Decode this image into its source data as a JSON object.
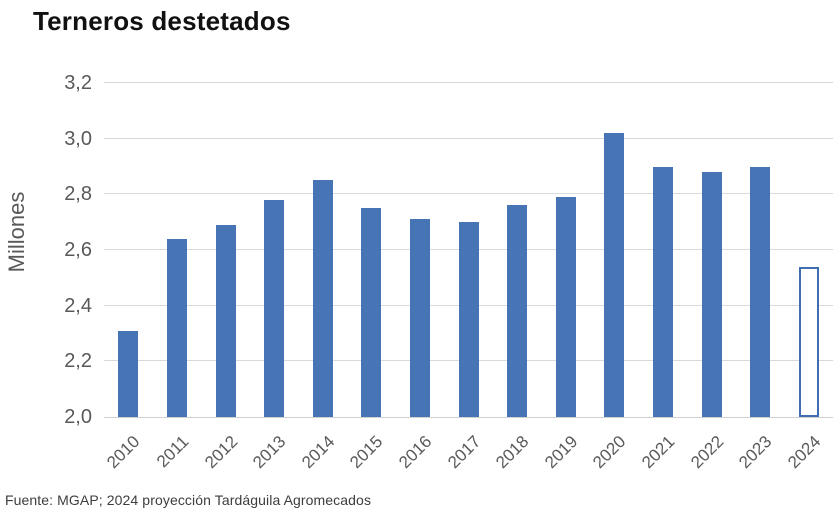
{
  "title": "Terneros destetados",
  "y_axis_title": "Millones",
  "source_note": "Fuente: MGAP; 2024 proyección Tardáguila Agromecados",
  "chart_data": {
    "type": "bar",
    "title": "Terneros destetados",
    "xlabel": "",
    "ylabel": "Millones",
    "categories": [
      "2010",
      "2011",
      "2012",
      "2013",
      "2014",
      "2015",
      "2016",
      "2017",
      "2018",
      "2019",
      "2020",
      "2021",
      "2022",
      "2023",
      "2024"
    ],
    "values": [
      2.31,
      2.64,
      2.69,
      2.78,
      2.85,
      2.75,
      2.71,
      2.7,
      2.76,
      2.79,
      3.02,
      2.9,
      2.88,
      2.9,
      2.54
    ],
    "projected_category": "2024",
    "projected_style": "hollow-outlined-bar",
    "ylim": [
      2.0,
      3.2
    ],
    "yticks": [
      {
        "value": 3.2,
        "label": "3,2"
      },
      {
        "value": 3.0,
        "label": "3,0"
      },
      {
        "value": 2.8,
        "label": "2,8"
      },
      {
        "value": 2.6,
        "label": "2,6"
      },
      {
        "value": 2.4,
        "label": "2,4"
      },
      {
        "value": 2.2,
        "label": "2,2"
      },
      {
        "value": 2.0,
        "label": "2,0"
      }
    ],
    "grid": "horizontal",
    "legend": "none",
    "x_tick_rotation_deg": 45,
    "decimal_separator": ",",
    "colors": {
      "bar_fill": "#4674b4",
      "bar_outline": "#3f6fb1",
      "gridline": "#d9d9d9",
      "axis_line": "#d0d0d0",
      "tick_label": "#595959",
      "title": "#111111",
      "source_note": "#3d3d3d",
      "background": "#ffffff"
    }
  }
}
